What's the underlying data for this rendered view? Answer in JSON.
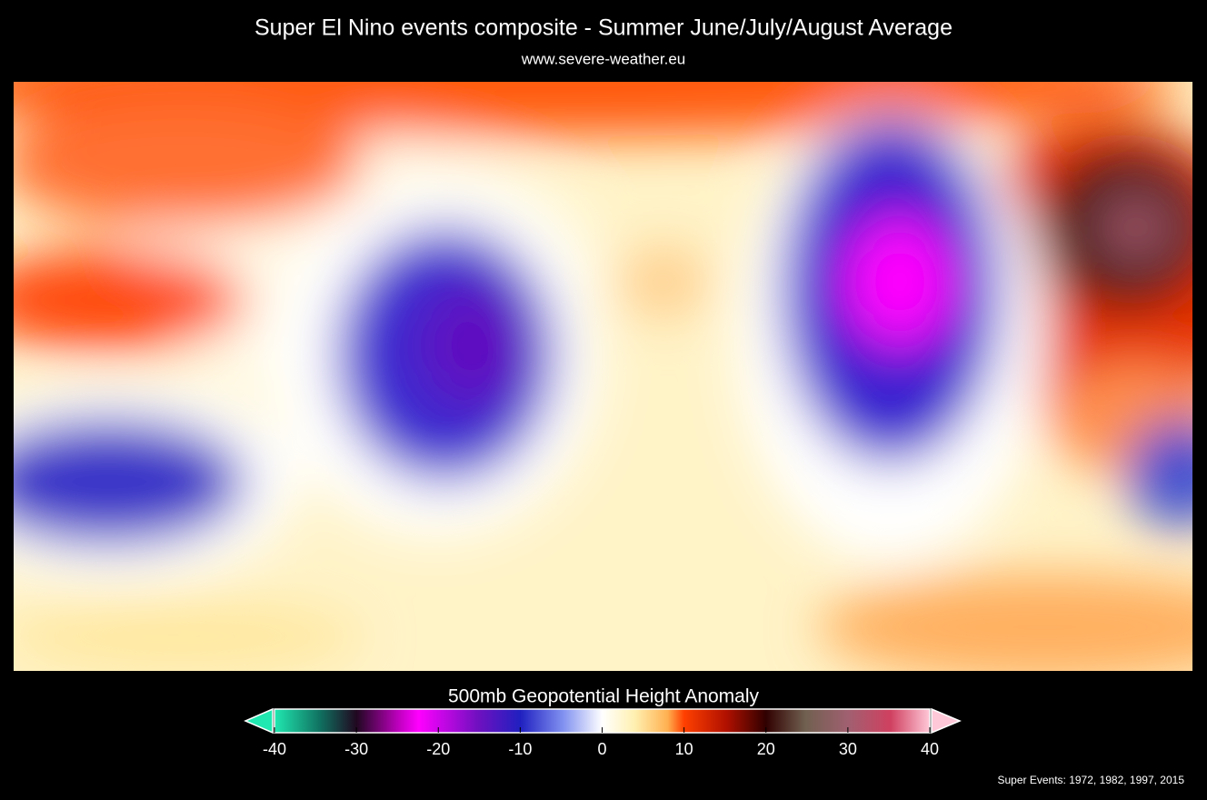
{
  "title": "Super El Nino events composite - Summer June/July/August Average",
  "subtitle": "www.severe-weather.eu",
  "colorbar": {
    "label": "500mb Geopotential Height Anomaly",
    "range": [
      -40,
      40
    ],
    "ticks": [
      -40,
      -30,
      -20,
      -10,
      0,
      10,
      20,
      30,
      40
    ]
  },
  "footnote": "Super Events: 1972, 1982, 1997, 2015"
}
